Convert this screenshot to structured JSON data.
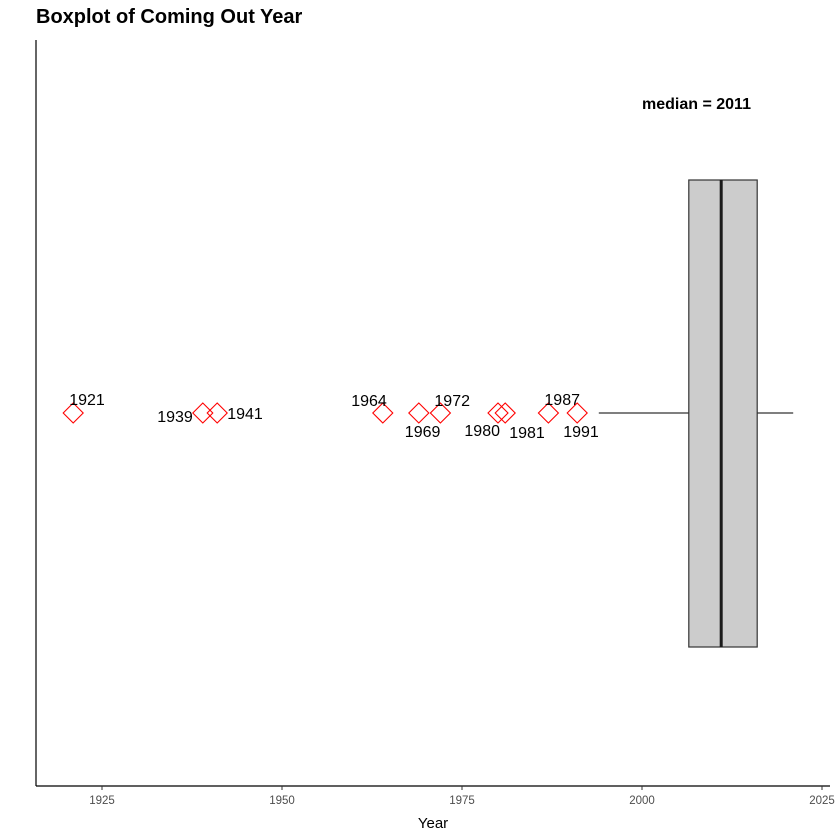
{
  "chart_data": {
    "type": "boxplot",
    "title": "Boxplot of Coming Out Year",
    "xlabel": "Year",
    "ylabel": "",
    "xlim": [
      1916,
      2026
    ],
    "x_ticks": [
      1925,
      1950,
      1975,
      2000,
      2025
    ],
    "grid": false,
    "box": {
      "whisker_low": 1994,
      "q1": 2006.5,
      "median": 2011,
      "q3": 2016,
      "whisker_high": 2021,
      "fill": "#cccccc",
      "stroke": "#333333"
    },
    "outliers": [
      {
        "x": 1921,
        "label": "1921",
        "label_pos": "above"
      },
      {
        "x": 1939,
        "label": "1939",
        "label_pos": "left"
      },
      {
        "x": 1941,
        "label": "1941",
        "label_pos": "right"
      },
      {
        "x": 1964,
        "label": "1964",
        "label_pos": "above-left"
      },
      {
        "x": 1969,
        "label": "1969",
        "label_pos": "below"
      },
      {
        "x": 1972,
        "label": "1972",
        "label_pos": "above-right"
      },
      {
        "x": 1980,
        "label": "1980",
        "label_pos": "below-left"
      },
      {
        "x": 1981,
        "label": "1981",
        "label_pos": "below-right"
      },
      {
        "x": 1987,
        "label": "1987",
        "label_pos": "above"
      },
      {
        "x": 1991,
        "label": "1991",
        "label_pos": "below"
      }
    ],
    "outlier_color": "#ff0000",
    "annotation": "median =  2011"
  }
}
